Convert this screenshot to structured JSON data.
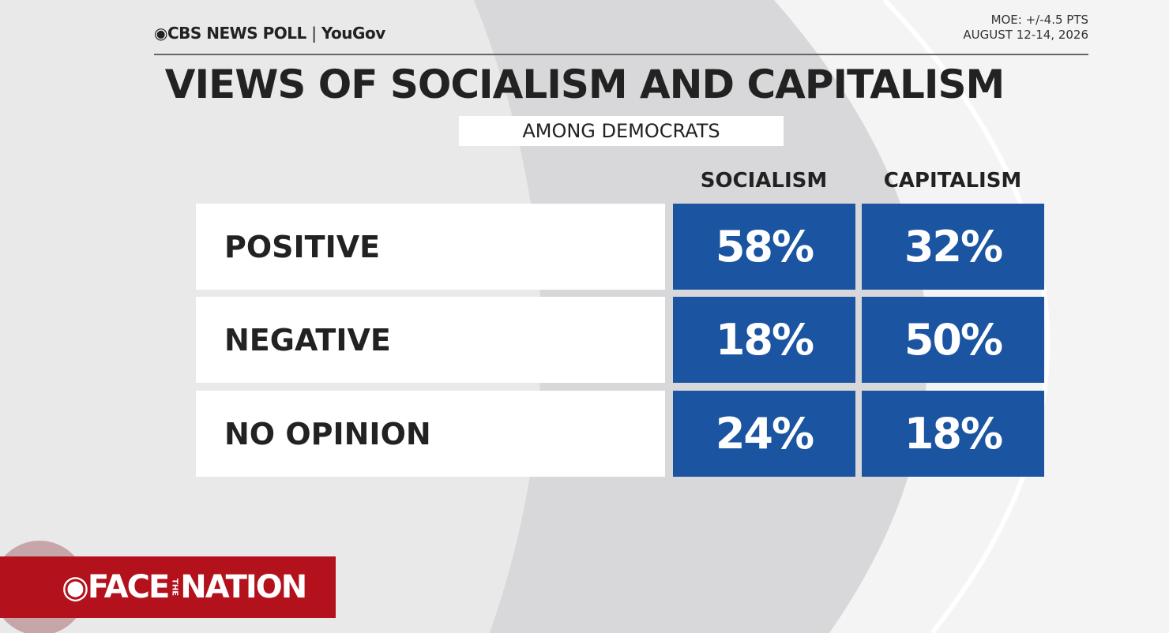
{
  "header": {
    "brand": "CBS NEWS POLL",
    "partner": "YouGov",
    "moe": "MOE: +/-4.5 PTS",
    "dates": "AUGUST 12-14, 2026"
  },
  "title": "VIEWS OF SOCIALISM AND CAPITALISM",
  "subtitle": "AMONG DEMOCRATS",
  "table": {
    "columns": [
      "SOCIALISM",
      "CAPITALISM"
    ],
    "rows": [
      {
        "label": "POSITIVE",
        "cells": [
          "58%",
          "32%"
        ]
      },
      {
        "label": "NEGATIVE",
        "cells": [
          "18%",
          "50%"
        ]
      },
      {
        "label": "NO OPINION",
        "cells": [
          "24%",
          "18%"
        ]
      }
    ]
  },
  "footer": {
    "show": [
      "FACE",
      "THE",
      "NATION"
    ]
  }
}
